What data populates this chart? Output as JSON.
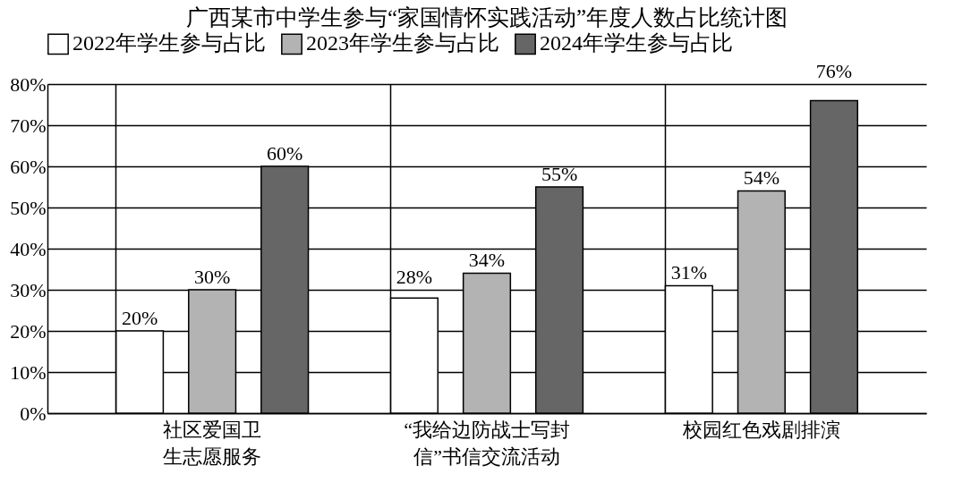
{
  "chart_data": {
    "type": "bar",
    "title": "广西某市中学生参与“家国情怀实践活动”年度人数占比统计图",
    "categories": [
      "社区爱国卫生志愿服务",
      "“我给边防战士写封信”书信交流活动",
      "校园红色戏剧排演"
    ],
    "series": [
      {
        "name": "2022年学生参与占比",
        "color": "#ffffff",
        "values": [
          20,
          28,
          31
        ],
        "value_labels": [
          "20%",
          "28%",
          "31%"
        ]
      },
      {
        "name": "2023年学生参与占比",
        "color": "#b3b3b3",
        "values": [
          30,
          34,
          54
        ],
        "value_labels": [
          "30%",
          "34%",
          "54%"
        ]
      },
      {
        "name": "2024年学生参与占比",
        "color": "#666666",
        "values": [
          60,
          55,
          76
        ],
        "value_labels": [
          "60%",
          "55%",
          "76%"
        ]
      }
    ],
    "ylim": [
      0,
      80
    ],
    "yticks": [
      {
        "value": 0,
        "label": "0%"
      },
      {
        "value": 10,
        "label": "10%"
      },
      {
        "value": 20,
        "label": "20%"
      },
      {
        "value": 30,
        "label": "30%"
      },
      {
        "value": 40,
        "label": "40%"
      },
      {
        "value": 50,
        "label": "50%"
      },
      {
        "value": 60,
        "label": "60%"
      },
      {
        "value": 70,
        "label": "70%"
      },
      {
        "value": 80,
        "label": "80%"
      }
    ],
    "grid": true,
    "legend": "top"
  }
}
